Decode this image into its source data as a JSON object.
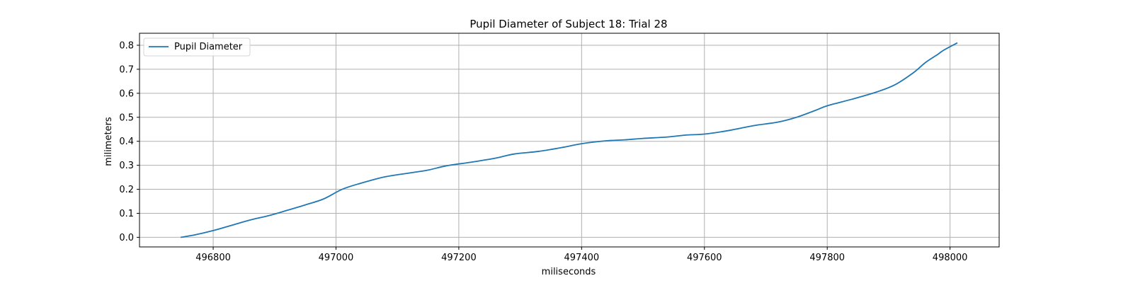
{
  "chart_data": {
    "type": "line",
    "title": "Pupil Diameter of Subject 18: Trial 28",
    "xlabel": "miliseconds",
    "ylabel": "milimeters",
    "xlim": [
      496680,
      498080
    ],
    "ylim": [
      -0.04,
      0.85
    ],
    "xticks": [
      496800,
      497000,
      497200,
      497400,
      497600,
      497800,
      498000
    ],
    "yticks": [
      0.0,
      0.1,
      0.2,
      0.3,
      0.4,
      0.5,
      0.6,
      0.7,
      0.8
    ],
    "xtick_labels": [
      "496800",
      "497000",
      "497200",
      "497400",
      "497600",
      "497800",
      "498000"
    ],
    "ytick_labels": [
      "0.0",
      "0.1",
      "0.2",
      "0.3",
      "0.4",
      "0.5",
      "0.6",
      "0.7",
      "0.8"
    ],
    "grid": true,
    "legend": {
      "position": "top-left",
      "entries": [
        "Pupil Diameter"
      ]
    },
    "series": [
      {
        "name": "Pupil Diameter",
        "color": "#1f77b4",
        "x": [
          496747,
          496770,
          496800,
          496830,
          496860,
          496890,
          496920,
          496950,
          496980,
          497010,
          497040,
          497080,
          497120,
          497150,
          497180,
          497220,
          497260,
          497290,
          497330,
          497370,
          497400,
          497440,
          497470,
          497500,
          497540,
          497570,
          497600,
          497640,
          497680,
          497720,
          497750,
          497780,
          497800,
          497840,
          497880,
          497910,
          497940,
          497960,
          497980,
          497990,
          498012
        ],
        "values": [
          0.0,
          0.01,
          0.028,
          0.05,
          0.072,
          0.09,
          0.112,
          0.135,
          0.16,
          0.2,
          0.225,
          0.252,
          0.268,
          0.28,
          0.298,
          0.313,
          0.33,
          0.347,
          0.358,
          0.375,
          0.39,
          0.402,
          0.406,
          0.412,
          0.418,
          0.426,
          0.43,
          0.445,
          0.465,
          0.48,
          0.5,
          0.528,
          0.548,
          0.575,
          0.605,
          0.635,
          0.685,
          0.728,
          0.762,
          0.78,
          0.81
        ]
      }
    ]
  }
}
